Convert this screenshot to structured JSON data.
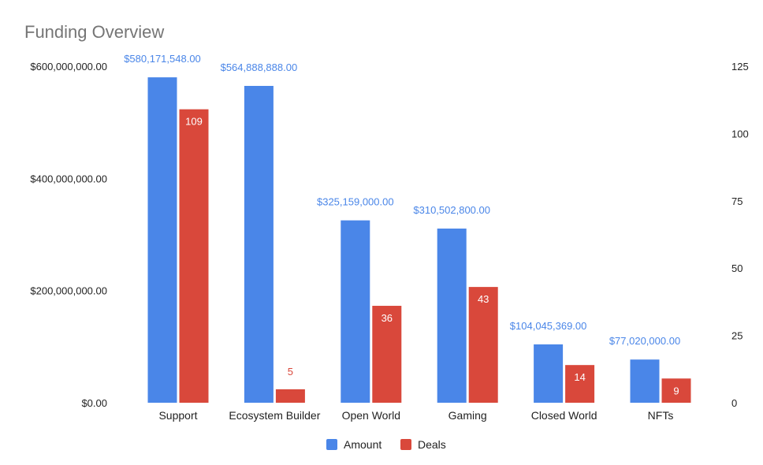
{
  "chart_data": {
    "type": "bar",
    "title": "Funding Overview",
    "categories": [
      "Support",
      "Ecosystem Builder",
      "Open World",
      "Gaming",
      "Closed World",
      "NFTs"
    ],
    "series": [
      {
        "name": "Amount",
        "axis": "left",
        "color": "#4a86e8",
        "values": [
          580171548,
          564888888,
          325159000,
          310502800,
          104045369,
          77020000
        ],
        "labels": [
          "$580,171,548.00",
          "$564,888,888.00",
          "$325,159,000.00",
          "$310,502,800.00",
          "$104,045,369.00",
          "$77,020,000.00"
        ]
      },
      {
        "name": "Deals",
        "axis": "right",
        "color": "#d9483b",
        "values": [
          109,
          5,
          36,
          43,
          14,
          9
        ],
        "labels": [
          "109",
          "5",
          "36",
          "43",
          "14",
          "9"
        ]
      }
    ],
    "y_left": {
      "range": [
        0,
        600000000
      ],
      "ticks": [
        0,
        200000000,
        400000000,
        600000000
      ],
      "tick_labels": [
        "$0.00",
        "$200,000,000.00",
        "$400,000,000.00",
        "$600,000,000.00"
      ]
    },
    "y_right": {
      "range": [
        0,
        125
      ],
      "ticks": [
        0,
        25,
        50,
        75,
        100,
        125
      ],
      "tick_labels": [
        "0",
        "25",
        "50",
        "75",
        "100",
        "125"
      ]
    },
    "legend": {
      "position": "bottom",
      "entries": [
        "Amount",
        "Deals"
      ]
    },
    "grid": false
  }
}
